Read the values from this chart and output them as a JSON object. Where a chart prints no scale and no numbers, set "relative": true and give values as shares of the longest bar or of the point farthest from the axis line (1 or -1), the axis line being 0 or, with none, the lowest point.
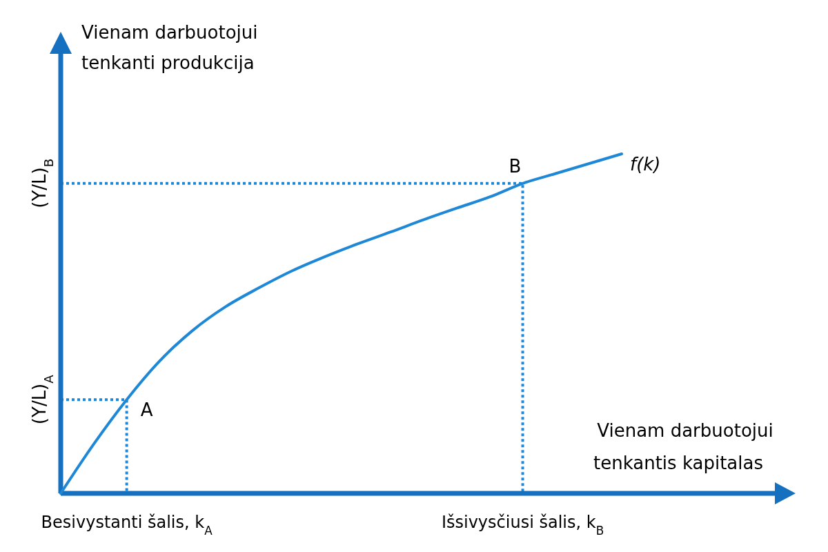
{
  "chart_data": {
    "type": "line",
    "relative": true,
    "xlabel": "Vienam darbuotojui tenkantis kapitalas",
    "ylabel": "Vienam darbuotojui tenkanti produkcija",
    "categories": [
      null,
      null,
      "Besivystanti šalis, k$_{A}$",
      null,
      null,
      null,
      null,
      null,
      null,
      null,
      null,
      null,
      null,
      null,
      "Išsivysčiusi šalis, k$_{B}$",
      null,
      null,
      null
    ],
    "series": [
      {
        "name": "f(k)",
        "color": "#1e88d6",
        "values": [
          0,
          0.145,
          0.276,
          0.39,
          0.48,
          0.55,
          0.605,
          0.655,
          0.697,
          0.735,
          0.77,
          0.806,
          0.84,
          0.873,
          0.913,
          0.942,
          0.971,
          1
        ]
      }
    ],
    "ref_lines": [
      {
        "axis": "y",
        "value": 0.276,
        "label": "(Y/L)$_{A}$",
        "color": "#1e88d6",
        "line_style": "dotted"
      },
      {
        "axis": "y",
        "value": 0.913,
        "label": "(Y/L)$_{B}$",
        "color": "#1e88d6",
        "line_style": "dotted"
      }
    ],
    "annotations": [
      "A",
      "B"
    ],
    "marker": "none",
    "line_style": "solid"
  }
}
